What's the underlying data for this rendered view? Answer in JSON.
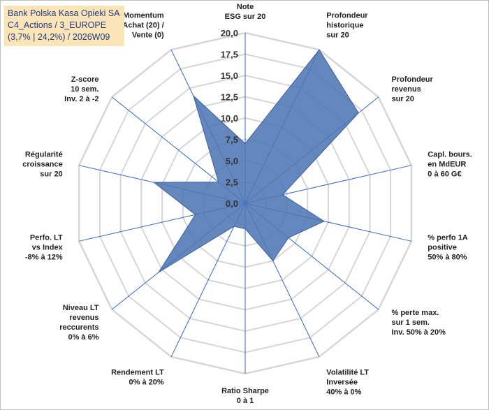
{
  "info": {
    "line1": "Bank Polska Kasa Opieki SA",
    "line2": "C4_Actions / 3_EUROPE",
    "line3": "(3,7% | 24,2%) / 2026W09"
  },
  "chart_data": {
    "type": "radar",
    "ylim": [
      0,
      20
    ],
    "ticks": [
      "0,0",
      "2,5",
      "5,0",
      "7,5",
      "10,0",
      "12,5",
      "15,0",
      "17,5",
      "20,0"
    ],
    "grid": true,
    "colors": {
      "fill": "#4f76b5",
      "stroke": "#3b5f9a",
      "grid": "#d6d6d6",
      "spoke": "#3366cc"
    },
    "axes": [
      {
        "label": [
          "Note",
          "ESG sur 20"
        ],
        "value": 7.0
      },
      {
        "label": [
          "Profondeur",
          "historique",
          "sur 20"
        ],
        "value": 20.0
      },
      {
        "label": [
          "Profondeur",
          "revenus",
          "sur 20"
        ],
        "value": 17.0
      },
      {
        "label": [
          "Capl. bours.",
          "en MdEUR",
          "0 à 60 G€"
        ],
        "value": 4.5
      },
      {
        "label": [
          "% perfo 1A",
          "positive",
          "50% à 80%"
        ],
        "value": 9.5
      },
      {
        "label": [
          "% perte max.",
          "sur 1 sem.",
          "Inv. 50% à 20%"
        ],
        "value": 6.5
      },
      {
        "label": [
          "Volatilité LT",
          "Inversée",
          "40% à 0%"
        ],
        "value": 7.5
      },
      {
        "label": [
          "Ratio Sharpe",
          "0 à 1"
        ],
        "value": 3.0
      },
      {
        "label": [
          "Rendement LT",
          "0% à 20%"
        ],
        "value": 3.0
      },
      {
        "label": [
          "Niveau LT",
          "revenus",
          "reccurents",
          "0% à 6%"
        ],
        "value": 13.0
      },
      {
        "label": [
          "Perfo. LT",
          "vs Index",
          "-8% à 12%"
        ],
        "value": 6.0
      },
      {
        "label": [
          "Régularité",
          "croissance",
          "sur 20"
        ],
        "value": 11.0
      },
      {
        "label": [
          "Z-score",
          "10 sem.",
          "Inv. 2 à -2"
        ],
        "value": 4.0
      },
      {
        "label": [
          "Momentum",
          "Achat (20) /",
          "Vente (0)"
        ],
        "value": 14.0
      }
    ]
  }
}
